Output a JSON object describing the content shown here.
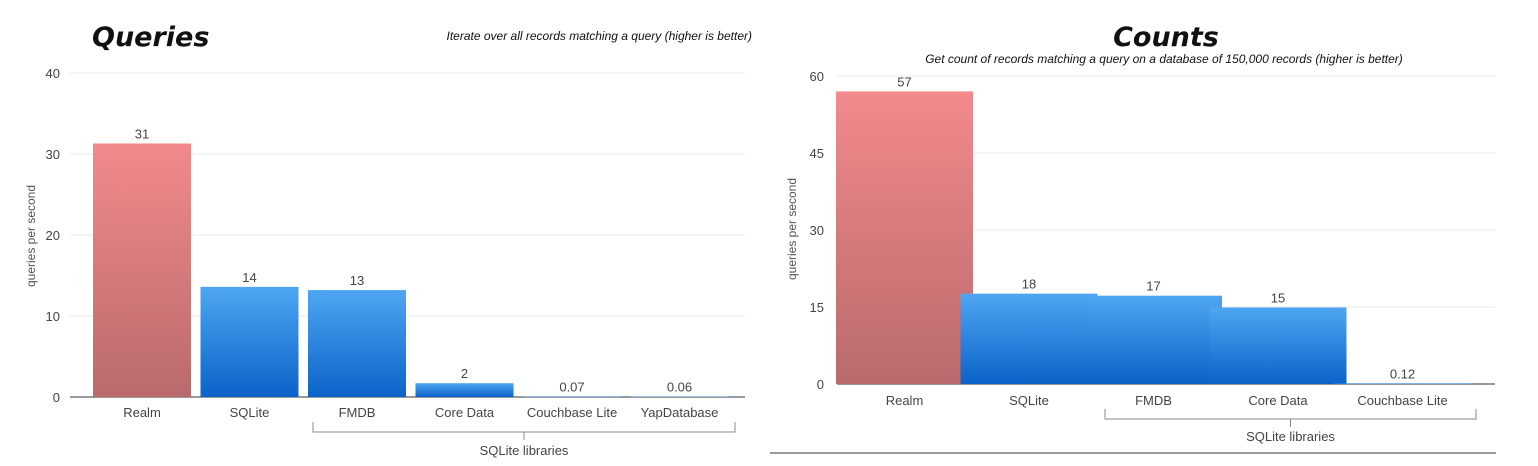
{
  "colors": {
    "realm_top": "#f28a8c",
    "realm_bottom": "#b96a6c",
    "sqlite_top": "#4ea6f2",
    "sqlite_bottom": "#0b63c8",
    "grid": "#e8e8e8",
    "axis": "#333333"
  },
  "chart_data": [
    {
      "type": "bar",
      "title": "Queries",
      "subtitle": "Iterate over all records matching a query (higher is better)",
      "ylabel": "queries per second",
      "ylim": [
        0,
        40
      ],
      "yticks": [
        0,
        10,
        20,
        30,
        40
      ],
      "categories": [
        "Realm",
        "SQLite",
        "FMDB",
        "Core Data",
        "Couchbase Lite",
        "YapDatabase"
      ],
      "values": [
        31.3,
        13.6,
        13.2,
        1.7,
        0.07,
        0.06
      ],
      "data_labels": [
        "31",
        "14",
        "13",
        "2",
        "0.07",
        "0.06"
      ],
      "bar_styles": [
        "realm",
        "sqlite",
        "sqlite",
        "sqlite",
        "sqlite",
        "sqlite"
      ],
      "group_label": "SQLite libraries",
      "grid": true
    },
    {
      "type": "bar",
      "title": "Counts",
      "subtitle": "Get count of records matching a query on a database of 150,000 records (higher is better)",
      "ylabel": "queries per second",
      "ylim": [
        0,
        60
      ],
      "yticks": [
        0,
        15,
        30,
        45,
        60
      ],
      "categories": [
        "Realm",
        "SQLite",
        "FMDB",
        "Core Data",
        "Couchbase Lite"
      ],
      "values": [
        57,
        17.6,
        17.2,
        14.9,
        0.12
      ],
      "data_labels": [
        "57",
        "18",
        "17",
        "15",
        "0.12"
      ],
      "bar_styles": [
        "realm",
        "sqlite",
        "sqlite",
        "sqlite",
        "sqlite"
      ],
      "group_label": "SQLite libraries",
      "grid": true
    }
  ]
}
